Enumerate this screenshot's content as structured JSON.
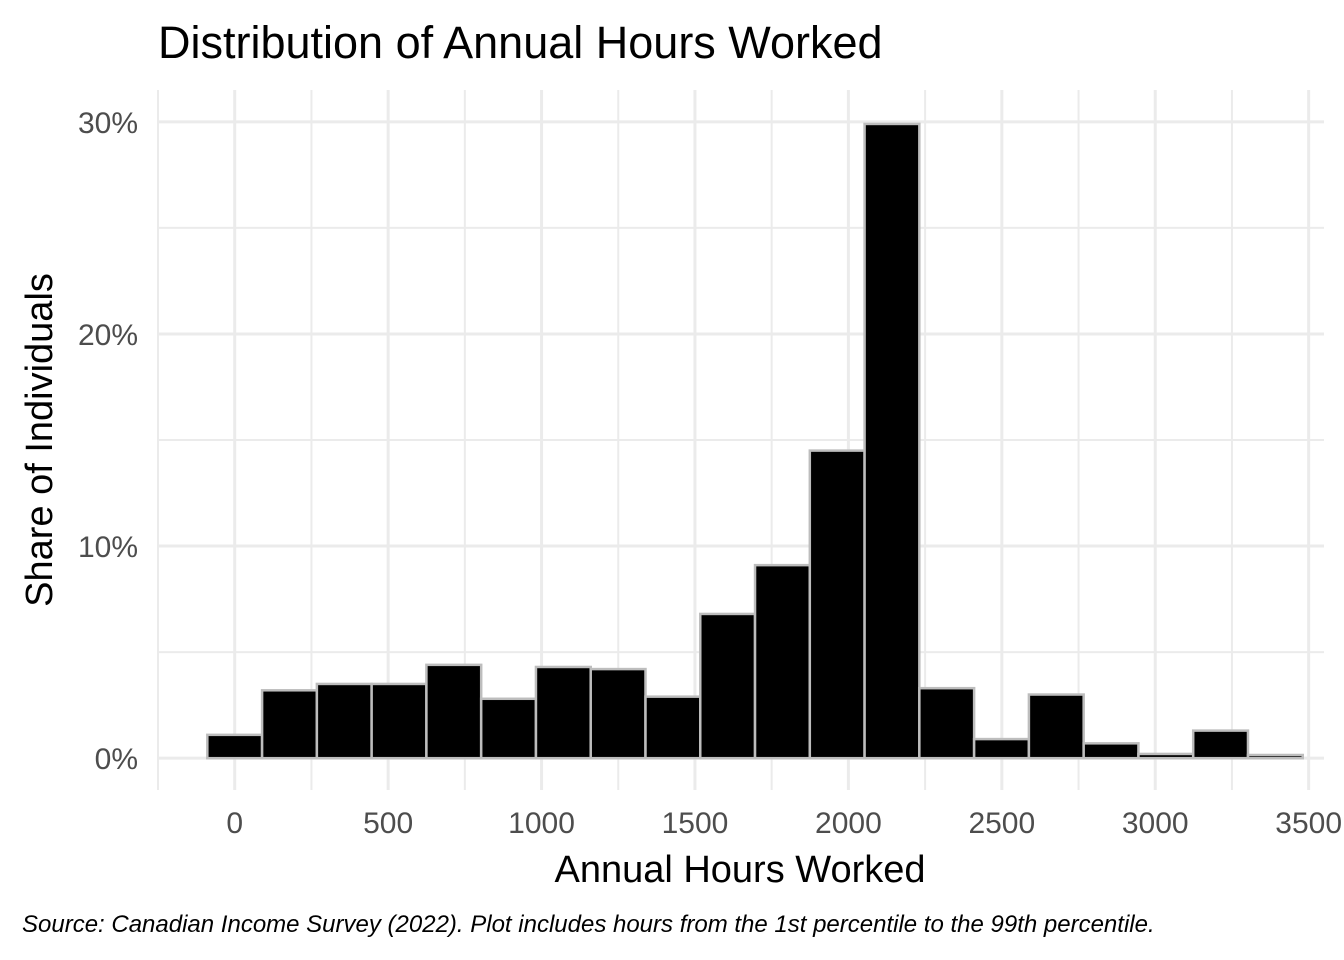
{
  "chart_data": {
    "type": "bar",
    "title": "Distribution of Annual Hours Worked",
    "xlabel": "Annual Hours Worked",
    "ylabel": "Share of Individuals",
    "caption": "Source: Canadian Income Survey (2022). Plot includes hours from the 1st percentile to the 99th percentile.",
    "x_ticks": [
      0,
      500,
      1000,
      1500,
      2000,
      2500,
      3000,
      3500
    ],
    "x_tick_labels": [
      "0",
      "500",
      "1000",
      "1500",
      "2000",
      "2500",
      "3000",
      "3500"
    ],
    "y_ticks": [
      0,
      10,
      20,
      30
    ],
    "y_tick_labels": [
      "0%",
      "10%",
      "20%",
      "30%"
    ],
    "xlim": [
      -250,
      3550
    ],
    "ylim": [
      -1.5,
      31.5
    ],
    "bin_width": 178.5,
    "bin_centers": [
      0,
      178.5,
      357,
      535.5,
      714,
      892.5,
      1071,
      1249.5,
      1428,
      1606.5,
      1785,
      1963.5,
      2142,
      2320.5,
      2499,
      2677.5,
      2856,
      3034.5,
      3213,
      3391.5
    ],
    "values": [
      1.1,
      3.2,
      3.5,
      3.5,
      4.4,
      2.8,
      4.3,
      4.2,
      2.9,
      6.8,
      9.1,
      14.5,
      29.9,
      3.3,
      0.9,
      3.0,
      0.7,
      0.2,
      1.3,
      0.15
    ],
    "bar_fill": "#000000",
    "bar_outline": "#bdbdbd",
    "grid": true,
    "grid_color": "#ebebeb",
    "legend": "none"
  }
}
